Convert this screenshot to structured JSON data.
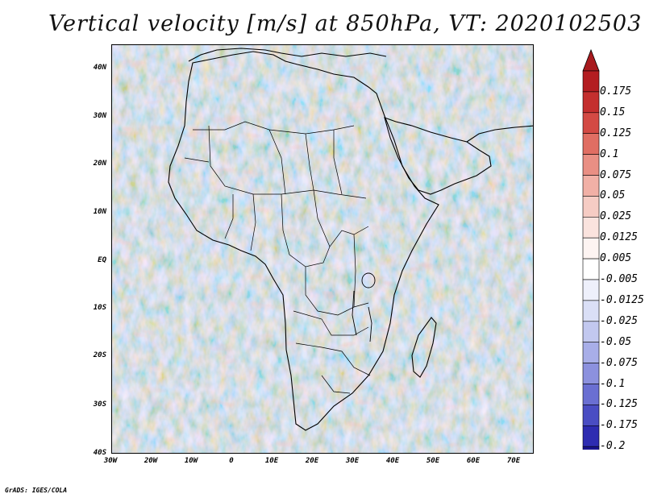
{
  "title": "Vertical velocity [m/s] at 850hPa, VT: 2020102503",
  "credit": "GrADS: IGES/COLA",
  "map": {
    "lat_labels": [
      "40N",
      "30N",
      "20N",
      "10N",
      "EQ",
      "10S",
      "20S",
      "30S",
      "40S"
    ],
    "lon_labels": [
      "30W",
      "20W",
      "10W",
      "0",
      "10E",
      "20E",
      "30E",
      "40E",
      "50E",
      "60E",
      "70E"
    ]
  },
  "colorbar": {
    "labels": [
      "0.175",
      "0.15",
      "0.125",
      "0.1",
      "0.075",
      "0.05",
      "0.025",
      "0.0125",
      "0.005",
      "-0.005",
      "-0.0125",
      "-0.025",
      "-0.05",
      "-0.075",
      "-0.1",
      "-0.125",
      "-0.175",
      "-0.2"
    ],
    "colors": [
      "#b31d21",
      "#c42f2e",
      "#d34a44",
      "#e06e63",
      "#e98f84",
      "#f1b0a6",
      "#f6ccc4",
      "#fae3de",
      "#fdf4f2",
      "#ffffff",
      "#eef0fb",
      "#dadff6",
      "#c2c8ef",
      "#a8aee8",
      "#8c91de",
      "#6a6fd2",
      "#4a4dc3",
      "#2e2cb1",
      "#1b158f"
    ],
    "top_arrow_color": "#a81a1e",
    "bottom_arrow_color": "#1c1290"
  }
}
